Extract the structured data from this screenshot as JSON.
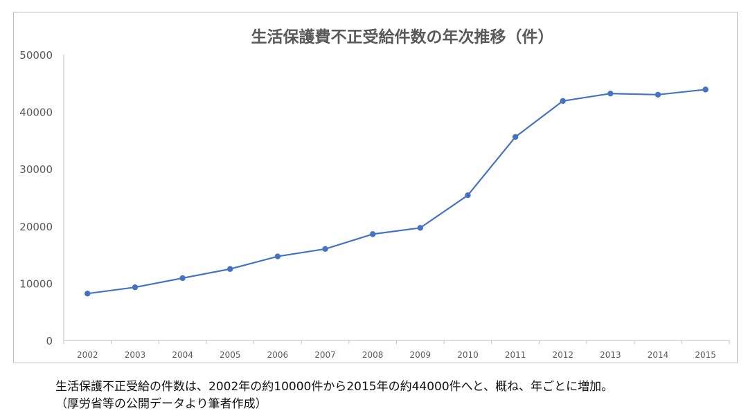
{
  "chart_data": {
    "type": "line",
    "title": "生活保護費不正受給件数の年次推移（件）",
    "xlabel": "",
    "ylabel": "",
    "categories": [
      "2002",
      "2003",
      "2004",
      "2005",
      "2006",
      "2007",
      "2008",
      "2009",
      "2010",
      "2011",
      "2012",
      "2013",
      "2014",
      "2015"
    ],
    "series": [
      {
        "name": "不正受給件数",
        "values": [
          8200,
          9300,
          10900,
          12500,
          14700,
          16000,
          18600,
          19700,
          25400,
          35600,
          41900,
          43200,
          43000,
          43900
        ]
      }
    ],
    "ylim": [
      0,
      50000
    ],
    "yticks": [
      0,
      10000,
      20000,
      30000,
      40000,
      50000
    ],
    "grid": false,
    "legend": "none"
  },
  "colors": {
    "line": "#4472c4",
    "axis": "#bfbfbf",
    "tick_text": "#595959",
    "title_text": "#595959"
  },
  "caption": {
    "line1": "生活保護不正受給の件数は、2002年の約10000件から2015年の約44000件へと、概ね、年ごとに増加。",
    "line2": "（厚労省等の公開データより筆者作成）"
  }
}
